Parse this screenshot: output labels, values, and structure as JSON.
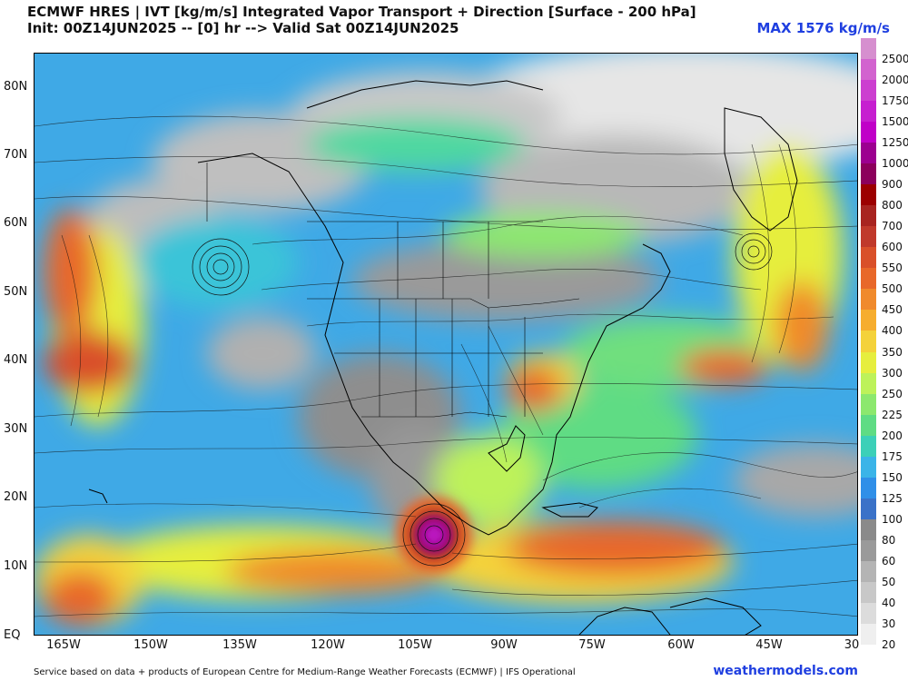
{
  "header": {
    "title": "ECMWF HRES | IVT [kg/m/s] Integrated Vapor Transport + Direction [Surface - 200 hPa]",
    "subtitle": "Init: 00Z14JUN2025 -- [0] hr --> Valid Sat 00Z14JUN2025",
    "max_label": "MAX 1576 kg/m/s"
  },
  "axes": {
    "lat_labels": [
      "80N",
      "70N",
      "60N",
      "50N",
      "40N",
      "30N",
      "20N",
      "10N",
      "EQ"
    ],
    "lon_labels": [
      "165W",
      "150W",
      "135W",
      "120W",
      "105W",
      "90W",
      "75W",
      "60W",
      "45W",
      "30"
    ]
  },
  "colorbar": {
    "labels": [
      "2500",
      "2000",
      "1750",
      "1500",
      "1250",
      "1000",
      "900",
      "800",
      "700",
      "600",
      "550",
      "500",
      "450",
      "400",
      "350",
      "300",
      "250",
      "225",
      "200",
      "175",
      "150",
      "125",
      "100",
      "80",
      "60",
      "50",
      "40",
      "30",
      "20"
    ],
    "colors": [
      "#d68fcf",
      "#d263cf",
      "#cc3fd0",
      "#c61fd0",
      "#c000c8",
      "#9c0090",
      "#8c005c",
      "#9c0000",
      "#a82420",
      "#c0392b",
      "#d9502a",
      "#e8682a",
      "#f08a2c",
      "#f6ad2e",
      "#f4d23a",
      "#e6ee3e",
      "#bdf25a",
      "#8ce86e",
      "#5fdc84",
      "#3cd0b8",
      "#3ab4e8",
      "#2f8fe8",
      "#3a72c8",
      "#8a8a8a",
      "#9a9a9a",
      "#b4b4b4",
      "#c8c8c8",
      "#dcdcdc",
      "#efefef"
    ]
  },
  "footer": {
    "credit": "Service based on data + products of European Centre for Medium-Range Weather Forecasts (ECMWF) | IFS Operational",
    "brand": "weathermodels.com"
  }
}
